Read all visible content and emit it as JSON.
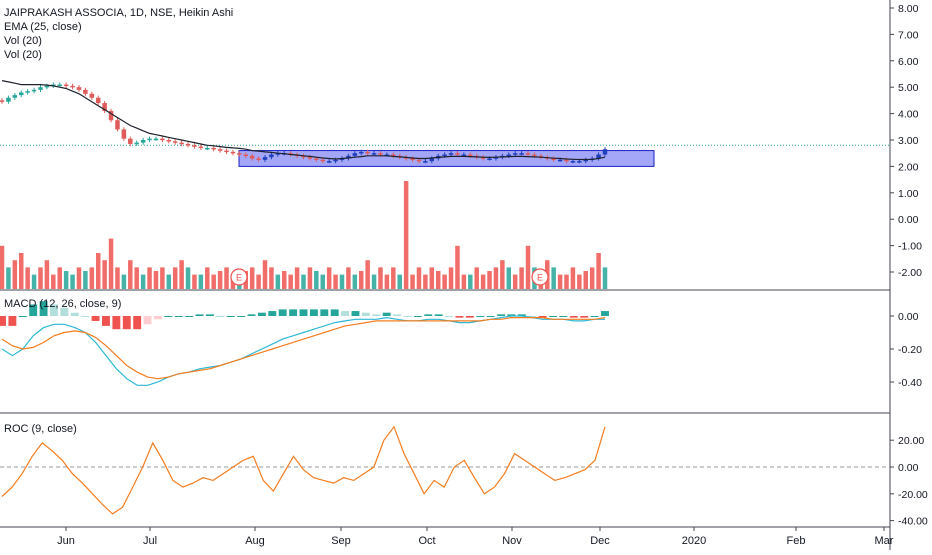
{
  "legend": {
    "symbol": "JAIPRAKASH ASSOCIA, 1D, NSE, Heikin Ashi",
    "ema": "EMA (25, close)",
    "vol1": "Vol (20)",
    "vol2": "Vol (20)",
    "macd": "MACD (12, 26, close, 9)",
    "roc": "ROC (9, close)"
  },
  "colors": {
    "up": "#26a69a",
    "down": "#ef5350",
    "up_faded": "#b2dfdb",
    "down_faded": "#ffcdd2",
    "ema": "#1e222d",
    "macd_line": "#2eb8d6",
    "signal_line": "#f57c1f",
    "roc_line": "#f57c1f",
    "box_fill": "#5a5ff0",
    "box_stroke": "#1a1fc8",
    "heikin_down": "#e05a5a",
    "heikin_up_box": "#1f3fbf"
  },
  "events": [
    "E",
    "E"
  ],
  "chart_data": [
    {
      "type": "candlestick",
      "title": "JAIPRAKASH ASSOCIA, 1D, NSE, Heikin Ashi",
      "y_ticks": [
        "8.00",
        "7.00",
        "6.00",
        "5.00",
        "4.00",
        "3.00",
        "2.00",
        "1.00",
        "0.00",
        "-1.00",
        "-2.00"
      ],
      "x_ticks": [
        "Jun",
        "Jul",
        "Aug",
        "Sep",
        "Oct",
        "Nov",
        "Dec",
        "2020",
        "Feb",
        "Mar"
      ],
      "close": [
        4.45,
        4.6,
        4.7,
        4.8,
        4.85,
        4.9,
        5.0,
        5.05,
        5.1,
        5.1,
        5.05,
        5.0,
        4.9,
        4.75,
        4.6,
        4.4,
        4.1,
        3.75,
        3.4,
        3.05,
        2.85,
        2.9,
        3.0,
        3.05,
        3.05,
        3.0,
        2.95,
        2.9,
        2.85,
        2.8,
        2.75,
        2.7,
        2.7,
        2.65,
        2.6,
        2.55,
        2.5,
        2.45,
        2.4,
        2.3,
        2.25,
        2.35,
        2.45,
        2.5,
        2.5,
        2.45,
        2.4,
        2.35,
        2.3,
        2.25,
        2.2,
        2.2,
        2.25,
        2.3,
        2.4,
        2.5,
        2.55,
        2.5,
        2.5,
        2.45,
        2.45,
        2.4,
        2.35,
        2.3,
        2.25,
        2.2,
        2.2,
        2.3,
        2.4,
        2.45,
        2.5,
        2.45,
        2.45,
        2.4,
        2.35,
        2.3,
        2.3,
        2.35,
        2.4,
        2.45,
        2.5,
        2.5,
        2.45,
        2.4,
        2.35,
        2.3,
        2.25,
        2.25,
        2.2,
        2.2,
        2.2,
        2.25,
        2.3,
        2.45,
        2.65
      ],
      "ema": [
        5.25,
        5.2,
        5.15,
        5.1,
        5.1,
        5.1,
        5.1,
        5.08,
        5.05,
        5.0,
        4.95,
        4.85,
        4.75,
        4.6,
        4.45,
        4.3,
        4.15,
        4.0,
        3.85,
        3.7,
        3.55,
        3.45,
        3.35,
        3.25,
        3.2,
        3.15,
        3.1,
        3.05,
        3.0,
        2.95,
        2.9,
        2.85,
        2.8,
        2.78,
        2.75,
        2.72,
        2.7,
        2.68,
        2.65,
        2.6,
        2.58,
        2.55,
        2.53,
        2.5,
        2.48,
        2.45,
        2.43,
        2.4,
        2.38,
        2.35,
        2.32,
        2.3,
        2.28,
        2.3,
        2.32,
        2.35,
        2.37,
        2.4,
        2.4,
        2.4,
        2.4,
        2.38,
        2.36,
        2.34,
        2.32,
        2.3,
        2.3,
        2.32,
        2.34,
        2.36,
        2.38,
        2.38,
        2.38,
        2.37,
        2.36,
        2.35,
        2.34,
        2.35,
        2.36,
        2.37,
        2.38,
        2.38,
        2.37,
        2.36,
        2.35,
        2.33,
        2.31,
        2.3,
        2.28,
        2.27,
        2.26,
        2.26,
        2.27,
        2.3,
        2.35
      ],
      "box_range": [
        2.0,
        2.6
      ],
      "dotted_level": 2.8
    },
    {
      "type": "bar",
      "title": "Vol (20)",
      "values": [
        0.6,
        0.3,
        0.4,
        0.5,
        0.3,
        0.2,
        0.3,
        0.4,
        0.2,
        0.3,
        0.25,
        0.2,
        0.3,
        0.25,
        0.3,
        0.5,
        0.4,
        0.7,
        0.3,
        0.2,
        0.4,
        0.3,
        0.2,
        0.3,
        0.25,
        0.3,
        0.2,
        0.3,
        0.4,
        0.3,
        0.2,
        0.2,
        0.3,
        0.2,
        0.25,
        0.3,
        0.2,
        0.2,
        0.25,
        0.3,
        0.2,
        0.4,
        0.3,
        0.2,
        0.25,
        0.2,
        0.3,
        0.2,
        0.3,
        0.25,
        0.2,
        0.3,
        0.2,
        0.2,
        0.3,
        0.2,
        0.25,
        0.4,
        0.2,
        0.3,
        0.2,
        0.3,
        0.2,
        1.5,
        0.2,
        0.3,
        0.2,
        0.3,
        0.25,
        0.2,
        0.3,
        0.6,
        0.2,
        0.2,
        0.3,
        0.2,
        0.25,
        0.3,
        0.4,
        0.3,
        0.2,
        0.3,
        0.6,
        0.3,
        0.2,
        0.4,
        0.3,
        0.2,
        0.2,
        0.3,
        0.2,
        0.25,
        0.3,
        0.5,
        0.3
      ]
    },
    {
      "type": "line",
      "title": "MACD (12, 26, close, 9)",
      "y_ticks": [
        "0.00",
        "-0.20",
        "-0.40"
      ],
      "macd": [
        -0.2,
        -0.24,
        -0.2,
        -0.12,
        -0.07,
        -0.05,
        -0.05,
        -0.07,
        -0.1,
        -0.16,
        -0.24,
        -0.32,
        -0.38,
        -0.42,
        -0.42,
        -0.4,
        -0.37,
        -0.35,
        -0.34,
        -0.32,
        -0.31,
        -0.3,
        -0.28,
        -0.26,
        -0.23,
        -0.2,
        -0.17,
        -0.14,
        -0.12,
        -0.1,
        -0.08,
        -0.06,
        -0.04,
        -0.03,
        -0.02,
        -0.02,
        -0.02,
        -0.01,
        -0.02,
        -0.03,
        -0.03,
        -0.02,
        -0.02,
        -0.03,
        -0.04,
        -0.04,
        -0.03,
        -0.02,
        -0.01,
        0,
        0,
        -0.01,
        -0.02,
        -0.02,
        -0.02,
        -0.03,
        -0.03,
        -0.02,
        -0.02
      ],
      "signal": [
        -0.14,
        -0.18,
        -0.2,
        -0.19,
        -0.16,
        -0.12,
        -0.1,
        -0.09,
        -0.1,
        -0.13,
        -0.18,
        -0.24,
        -0.3,
        -0.34,
        -0.37,
        -0.38,
        -0.37,
        -0.35,
        -0.34,
        -0.33,
        -0.32,
        -0.3,
        -0.28,
        -0.26,
        -0.24,
        -0.22,
        -0.2,
        -0.18,
        -0.16,
        -0.14,
        -0.12,
        -0.1,
        -0.08,
        -0.06,
        -0.05,
        -0.04,
        -0.03,
        -0.03,
        -0.03,
        -0.03,
        -0.03,
        -0.03,
        -0.03,
        -0.03,
        -0.03,
        -0.03,
        -0.03,
        -0.02,
        -0.02,
        -0.01,
        -0.01,
        -0.01,
        -0.01,
        -0.02,
        -0.02,
        -0.02,
        -0.02,
        -0.02,
        -0.01
      ],
      "hist": [
        -0.06,
        -0.06,
        0,
        0.07,
        0.09,
        0.07,
        0.05,
        0.02,
        0,
        -0.03,
        -0.06,
        -0.08,
        -0.08,
        -0.08,
        -0.05,
        -0.02,
        0,
        0,
        0,
        0.01,
        0.01,
        0,
        0,
        0,
        0.01,
        0.02,
        0.03,
        0.04,
        0.04,
        0.04,
        0.04,
        0.04,
        0.04,
        0.03,
        0.03,
        0.02,
        0.01,
        0.02,
        0.01,
        0,
        0,
        0.01,
        0.01,
        0,
        -0.01,
        -0.01,
        0,
        0,
        0.01,
        0.01,
        0.01,
        0,
        -0.01,
        0,
        0,
        -0.01,
        -0.01,
        0,
        0.03
      ]
    },
    {
      "type": "line",
      "title": "ROC (9, close)",
      "y_ticks": [
        "20.00",
        "0.00",
        "-20.00",
        "-40.00"
      ],
      "values": [
        -22,
        -15,
        -5,
        8,
        18,
        12,
        5,
        -5,
        -12,
        -20,
        -28,
        -35,
        -30,
        -15,
        0,
        18,
        5,
        -10,
        -15,
        -12,
        -8,
        -10,
        -5,
        0,
        5,
        8,
        -10,
        -18,
        -5,
        8,
        -2,
        -8,
        -10,
        -12,
        -8,
        -10,
        -5,
        0,
        20,
        30,
        10,
        -5,
        -20,
        -10,
        -15,
        0,
        5,
        -8,
        -20,
        -15,
        -5,
        10,
        5,
        0,
        -5,
        -10,
        -8,
        -5,
        -2,
        5,
        30
      ]
    }
  ]
}
